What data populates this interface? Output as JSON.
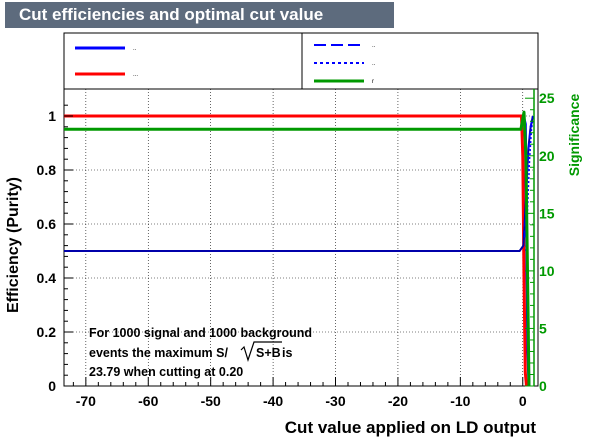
{
  "chart_data": {
    "type": "line",
    "title": "Cut efficiencies and optimal cut value",
    "xlabel": "Cut value applied on LD output",
    "ylabel": "Efficiency (Purity)",
    "y2label": "Significance",
    "xlim": [
      -73.5,
      1.8
    ],
    "ylim": [
      0,
      1.1
    ],
    "y2lim": [
      0,
      25.8
    ],
    "xticks": [
      -70,
      -60,
      -50,
      -40,
      -30,
      -20,
      -10,
      0
    ],
    "yticks": [
      0,
      0.2,
      0.4,
      0.6,
      0.8,
      1
    ],
    "y2ticks": [
      0,
      5,
      10,
      15,
      20,
      25
    ],
    "grid": true,
    "legend_placement": "top",
    "legend": [
      {
        "label": "..",
        "color": "#0000ff",
        "style": "solid"
      },
      {
        "label": "...",
        "color": "#ff0000",
        "style": "solid"
      },
      {
        "label": "..",
        "color": "#0000ff",
        "style": "dashed"
      },
      {
        "label": "..",
        "color": "#0000ff",
        "style": "dotted"
      },
      {
        "label": "r",
        "color": "#009900",
        "style": "solid"
      }
    ],
    "series": [
      {
        "color": "#0000ff",
        "axis": "y",
        "width": 3,
        "x": [
          -73.5,
          0,
          0.2,
          0.4,
          0.6,
          0.8,
          1.0
        ],
        "y": [
          1.0,
          1.0,
          0.99,
          0.97,
          0.6,
          0.15,
          0.0
        ]
      },
      {
        "color": "#ff0000",
        "axis": "y",
        "width": 3,
        "x": [
          -73.5,
          -0.2,
          0,
          0.2,
          0.4,
          0.6
        ],
        "y": [
          1.0,
          1.0,
          0.85,
          0.4,
          0.05,
          0.0
        ]
      },
      {
        "color": "#0000aa",
        "axis": "y",
        "width": 2,
        "x": [
          -73.5,
          -0.5,
          0.1,
          0.3,
          0.6,
          0.9,
          1.2,
          1.6
        ],
        "y": [
          0.5,
          0.5,
          0.52,
          0.6,
          0.75,
          0.88,
          0.95,
          1.0
        ]
      },
      {
        "color": "#0000ff",
        "axis": "y",
        "width": 1.5,
        "dash": "7,4",
        "x": [
          0.3,
          0.6,
          0.9,
          1.2,
          1.6
        ],
        "y": [
          0.55,
          0.7,
          0.86,
          0.96,
          1.0
        ]
      },
      {
        "color": "#0000ff",
        "axis": "y",
        "width": 1.5,
        "dash": "2,2",
        "x": [
          0.5,
          0.8,
          1.1,
          1.4,
          1.7
        ],
        "y": [
          0.5,
          0.68,
          0.84,
          0.95,
          1.0
        ]
      },
      {
        "color": "#009900",
        "axis": "y2",
        "width": 3,
        "x": [
          -73.5,
          -0.3,
          0.2,
          0.5,
          0.8,
          1.0
        ],
        "y": [
          22.3,
          22.3,
          23.79,
          20,
          8,
          0.0
        ]
      }
    ],
    "annotation": {
      "line1": "For 1000 signal and 1000 background",
      "line2a": "events the maximum S/",
      "line2b": "S+B",
      "line2c": "is",
      "line3": "23.79 when cutting at  0.20"
    }
  }
}
